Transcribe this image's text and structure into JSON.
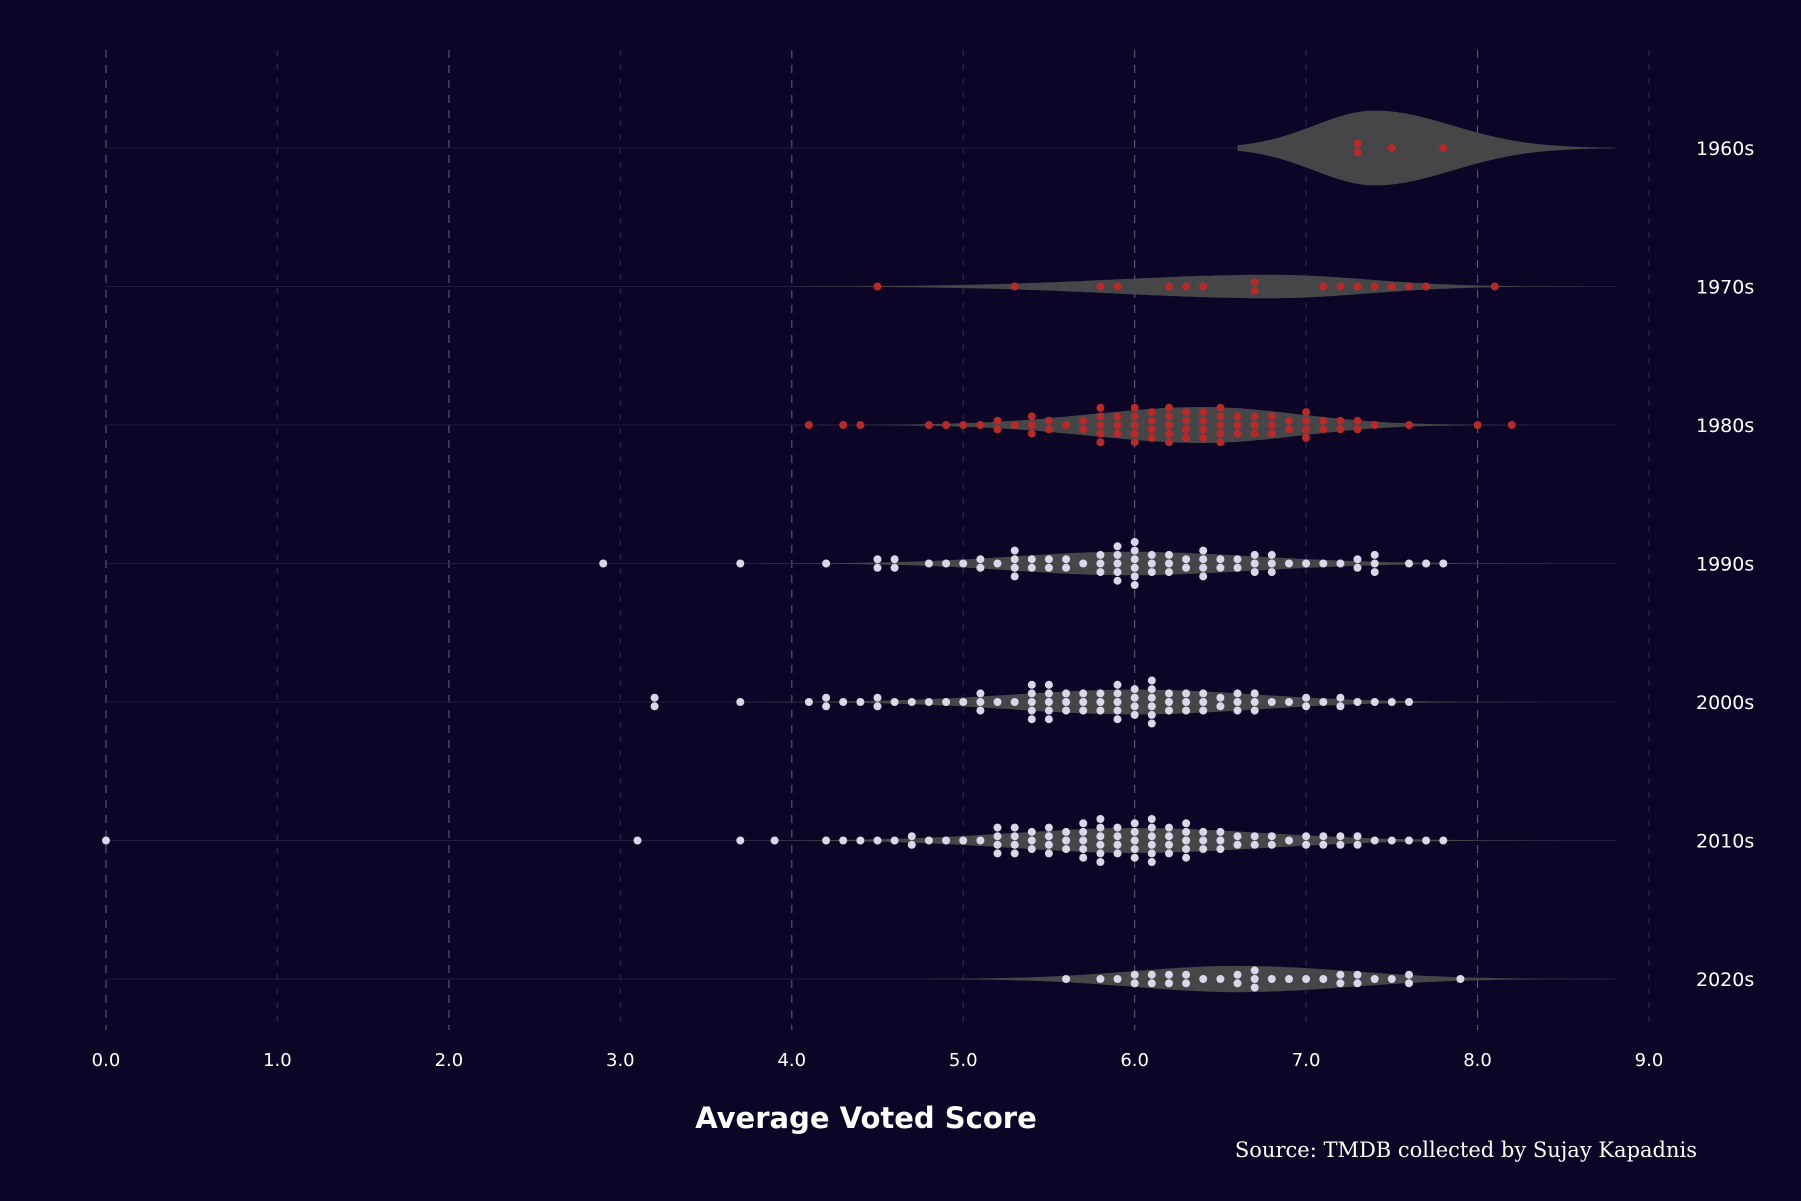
{
  "chart_data": {
    "type": "scatter",
    "subtype": "violin-beeswarm",
    "xlabel": "Average Voted Score",
    "source": "Source: TMDB collected by Sujay Kapadnis",
    "xlim": [
      0,
      9
    ],
    "x_ticks": [
      "0.0",
      "1.0",
      "2.0",
      "3.0",
      "4.0",
      "5.0",
      "6.0",
      "7.0",
      "8.0",
      "9.0"
    ],
    "orientation": "horizontal",
    "grid": "vertical dashed",
    "colors": {
      "background": "#0c0526",
      "violin": "#4a4a4a",
      "early": "#b52a2a",
      "late": "#dcd6e8"
    },
    "series": [
      {
        "name": "1960s",
        "color": "#b52a2a",
        "values": [
          7.3,
          7.3,
          7.5,
          7.8
        ]
      },
      {
        "name": "1970s",
        "color": "#b52a2a",
        "values": [
          4.5,
          5.3,
          5.8,
          5.9,
          6.2,
          6.3,
          6.4,
          6.7,
          6.7,
          7.1,
          7.2,
          7.3,
          7.4,
          7.5,
          7.6,
          7.7,
          8.1
        ]
      },
      {
        "name": "1980s",
        "color": "#b52a2a",
        "values": [
          4.1,
          4.3,
          4.4,
          4.8,
          4.9,
          5.0,
          5.1,
          5.2,
          5.2,
          5.3,
          5.4,
          5.4,
          5.4,
          5.5,
          5.5,
          5.6,
          5.7,
          5.7,
          5.8,
          5.8,
          5.8,
          5.8,
          5.8,
          5.9,
          5.9,
          5.9,
          6.0,
          6.0,
          6.0,
          6.0,
          6.0,
          6.1,
          6.1,
          6.1,
          6.1,
          6.2,
          6.2,
          6.2,
          6.2,
          6.2,
          6.3,
          6.3,
          6.3,
          6.3,
          6.4,
          6.4,
          6.4,
          6.4,
          6.5,
          6.5,
          6.5,
          6.5,
          6.5,
          6.6,
          6.6,
          6.6,
          6.7,
          6.7,
          6.7,
          6.8,
          6.8,
          6.8,
          6.9,
          6.9,
          7.0,
          7.0,
          7.0,
          7.0,
          7.1,
          7.1,
          7.2,
          7.2,
          7.3,
          7.3,
          7.4,
          7.6,
          8.0,
          8.2
        ]
      },
      {
        "name": "1990s",
        "color": "#dcd6e8",
        "values": [
          2.9,
          3.7,
          4.2,
          4.5,
          4.5,
          4.6,
          4.6,
          4.8,
          4.9,
          5.0,
          5.1,
          5.1,
          5.2,
          5.3,
          5.3,
          5.3,
          5.3,
          5.4,
          5.4,
          5.5,
          5.5,
          5.6,
          5.6,
          5.7,
          5.8,
          5.8,
          5.8,
          5.9,
          5.9,
          5.9,
          5.9,
          5.9,
          6.0,
          6.0,
          6.0,
          6.0,
          6.0,
          6.0,
          6.1,
          6.1,
          6.1,
          6.2,
          6.2,
          6.2,
          6.3,
          6.3,
          6.4,
          6.4,
          6.4,
          6.4,
          6.5,
          6.5,
          6.6,
          6.6,
          6.7,
          6.7,
          6.7,
          6.8,
          6.8,
          6.8,
          6.9,
          7.0,
          7.1,
          7.2,
          7.3,
          7.3,
          7.4,
          7.4,
          7.4,
          7.6,
          7.7,
          7.8
        ]
      },
      {
        "name": "2000s",
        "color": "#dcd6e8",
        "values": [
          3.2,
          3.2,
          3.7,
          4.1,
          4.2,
          4.2,
          4.3,
          4.4,
          4.5,
          4.5,
          4.6,
          4.7,
          4.8,
          4.9,
          5.0,
          5.1,
          5.1,
          5.1,
          5.2,
          5.3,
          5.4,
          5.4,
          5.4,
          5.4,
          5.4,
          5.5,
          5.5,
          5.5,
          5.5,
          5.5,
          5.6,
          5.6,
          5.6,
          5.7,
          5.7,
          5.7,
          5.8,
          5.8,
          5.8,
          5.9,
          5.9,
          5.9,
          5.9,
          5.9,
          6.0,
          6.0,
          6.0,
          6.0,
          6.1,
          6.1,
          6.1,
          6.1,
          6.1,
          6.1,
          6.2,
          6.2,
          6.2,
          6.3,
          6.3,
          6.3,
          6.4,
          6.4,
          6.4,
          6.5,
          6.5,
          6.6,
          6.6,
          6.6,
          6.7,
          6.7,
          6.7,
          6.8,
          6.9,
          7.0,
          7.0,
          7.1,
          7.2,
          7.2,
          7.3,
          7.4,
          7.5,
          7.6
        ]
      },
      {
        "name": "2010s",
        "color": "#dcd6e8",
        "values": [
          0.0,
          3.1,
          3.7,
          3.9,
          4.2,
          4.3,
          4.4,
          4.5,
          4.6,
          4.7,
          4.7,
          4.8,
          4.9,
          5.0,
          5.1,
          5.2,
          5.2,
          5.2,
          5.2,
          5.3,
          5.3,
          5.3,
          5.3,
          5.4,
          5.4,
          5.4,
          5.5,
          5.5,
          5.5,
          5.5,
          5.6,
          5.6,
          5.6,
          5.7,
          5.7,
          5.7,
          5.7,
          5.7,
          5.8,
          5.8,
          5.8,
          5.8,
          5.8,
          5.8,
          5.9,
          5.9,
          5.9,
          5.9,
          6.0,
          6.0,
          6.0,
          6.0,
          6.0,
          6.1,
          6.1,
          6.1,
          6.1,
          6.1,
          6.1,
          6.2,
          6.2,
          6.2,
          6.2,
          6.3,
          6.3,
          6.3,
          6.3,
          6.3,
          6.4,
          6.4,
          6.4,
          6.5,
          6.5,
          6.5,
          6.6,
          6.6,
          6.7,
          6.7,
          6.8,
          6.8,
          6.9,
          7.0,
          7.0,
          7.1,
          7.1,
          7.2,
          7.2,
          7.3,
          7.3,
          7.4,
          7.5,
          7.6,
          7.7,
          7.8
        ]
      },
      {
        "name": "2020s",
        "color": "#dcd6e8",
        "values": [
          5.6,
          5.8,
          5.9,
          6.0,
          6.0,
          6.1,
          6.1,
          6.2,
          6.2,
          6.3,
          6.3,
          6.4,
          6.5,
          6.6,
          6.6,
          6.7,
          6.7,
          6.7,
          6.8,
          6.9,
          7.0,
          7.1,
          7.2,
          7.2,
          7.3,
          7.3,
          7.4,
          7.5,
          7.6,
          7.6,
          7.9
        ]
      }
    ],
    "violins": [
      {
        "name": "1960s",
        "peak": 7.4,
        "sigma_left": 0.35,
        "sigma_right": 0.45,
        "halfwidth": 0.27,
        "range": [
          6.6,
          8.8
        ]
      },
      {
        "name": "1970s",
        "peak": 6.8,
        "sigma_left": 0.9,
        "sigma_right": 0.55,
        "halfwidth": 0.085,
        "range": [
          4.0,
          8.8
        ]
      },
      {
        "name": "1980s",
        "peak": 6.4,
        "sigma_left": 0.65,
        "sigma_right": 0.55,
        "halfwidth": 0.13,
        "range": [
          3.8,
          8.8
        ]
      },
      {
        "name": "1990s",
        "peak": 5.95,
        "sigma_left": 0.65,
        "sigma_right": 0.75,
        "halfwidth": 0.085,
        "range": [
          2.6,
          8.8
        ]
      },
      {
        "name": "2000s",
        "peak": 6.0,
        "sigma_left": 0.7,
        "sigma_right": 0.7,
        "halfwidth": 0.09,
        "range": [
          2.4,
          8.8
        ]
      },
      {
        "name": "2010s",
        "peak": 6.0,
        "sigma_left": 0.7,
        "sigma_right": 0.75,
        "halfwidth": 0.09,
        "range": [
          2.7,
          8.8
        ]
      },
      {
        "name": "2020s",
        "peak": 6.6,
        "sigma_left": 0.6,
        "sigma_right": 0.65,
        "halfwidth": 0.095,
        "range": [
          4.8,
          8.8
        ]
      }
    ]
  }
}
